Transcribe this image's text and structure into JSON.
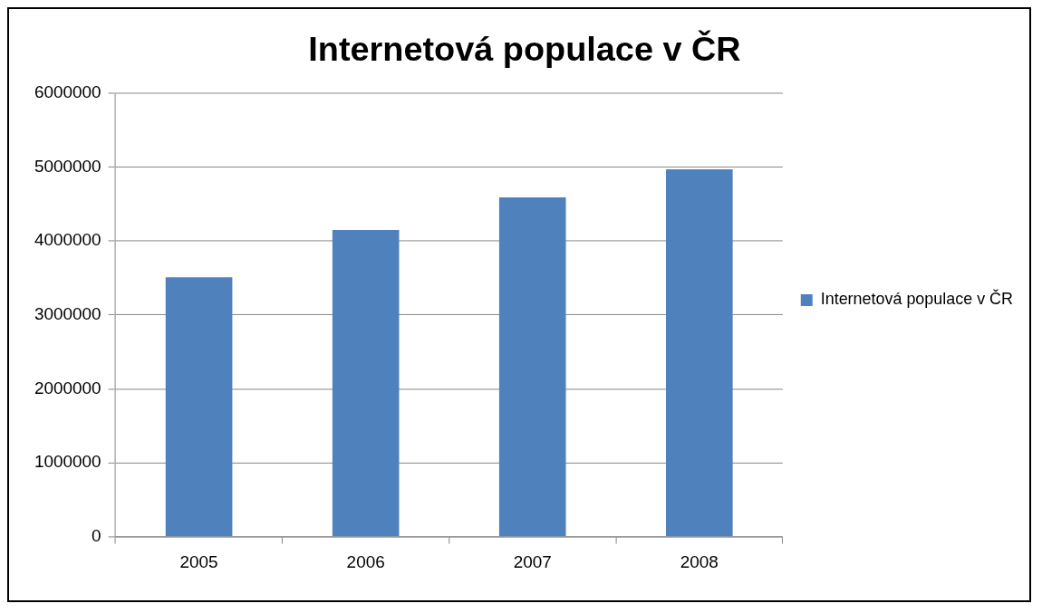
{
  "chart_data": {
    "type": "bar",
    "title": "Internetová populace v ČR",
    "categories": [
      "2005",
      "2006",
      "2007",
      "2008"
    ],
    "series": [
      {
        "name": "Internetová populace v ČR",
        "color": "#4f81bd",
        "values": [
          3510000,
          4150000,
          4590000,
          4970000
        ]
      }
    ],
    "ylim": [
      0,
      6000000
    ],
    "yticks": [
      0,
      1000000,
      2000000,
      3000000,
      4000000,
      5000000,
      6000000
    ],
    "grid": "y",
    "legend": "right"
  }
}
